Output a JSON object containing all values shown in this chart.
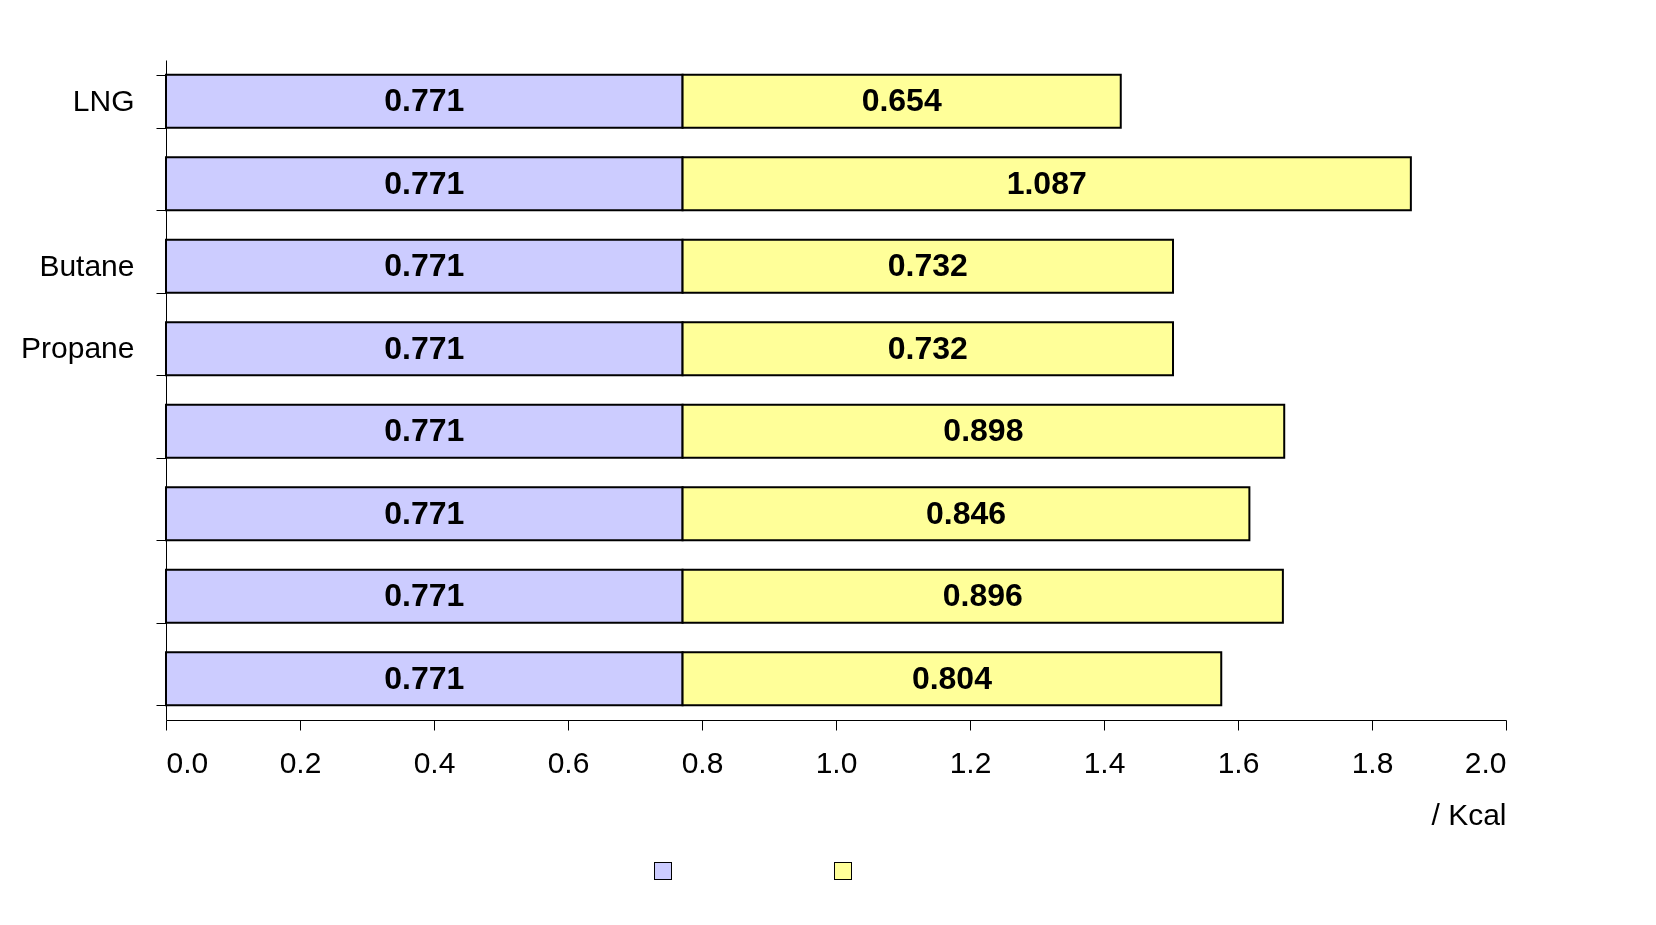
{
  "chart_data": {
    "type": "bar",
    "orientation": "horizontal",
    "stacked": true,
    "categories": [
      "LNG",
      null,
      "Butane",
      "Propane",
      null,
      null,
      null,
      null
    ],
    "series": [
      {
        "color": "#ccccff",
        "values": [
          0.771,
          0.771,
          0.771,
          0.771,
          0.771,
          0.771,
          0.771,
          0.771
        ]
      },
      {
        "color": "#ffff99",
        "values": [
          0.654,
          1.087,
          0.732,
          0.732,
          0.898,
          0.846,
          0.896,
          0.804
        ]
      }
    ],
    "xlim": [
      0,
      2.0
    ],
    "xticks": [
      {
        "value": 0,
        "label": "0.0"
      },
      0.2,
      0.4,
      0.6,
      0.8,
      {
        "value": 1,
        "label": "1.0"
      },
      1.2,
      1.4,
      1.6,
      1.8,
      {
        "value": 2,
        "label": "2.0"
      }
    ],
    "xlabel": "/ Kcal",
    "data_labels": true,
    "grid": false
  }
}
